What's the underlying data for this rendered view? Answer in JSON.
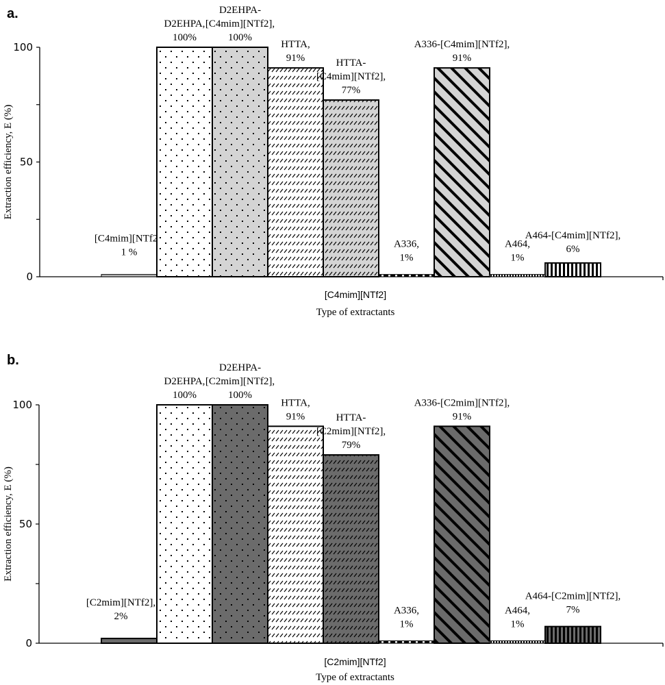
{
  "chart_data": [
    {
      "type": "bar",
      "panel_label": "a.",
      "title": "",
      "xlabel": "Type of extractants",
      "category_group_label": "[C4mim][NTf2]",
      "ylabel": "Extraction efficiency, E (%)",
      "ylim": [
        0,
        100
      ],
      "yticks": [
        0,
        25,
        50,
        75,
        100
      ],
      "ytick_labels": [
        "0",
        "",
        "50",
        "",
        "100"
      ],
      "grid": false,
      "categories": [
        "[C4mim][NTf2]",
        "D2EHPA",
        "D2EHPA-[C4mim][NTf2]",
        "HTTA",
        "HTTA-[C4mim][NTf2]",
        "A336",
        "A336-[C4mim][NTf2]",
        "A464",
        "A464-[C4mim][NTf2]"
      ],
      "values": [
        1,
        100,
        100,
        91,
        77,
        1,
        91,
        1,
        6
      ],
      "data_labels": [
        [
          "[C4mim][NTf2],",
          "1 %"
        ],
        [
          "D2EHPA,",
          "100%"
        ],
        [
          "D2EHPA-",
          "[C4mim][NTf2],",
          "100%"
        ],
        [
          "HTTA,",
          "91%"
        ],
        [
          "HTTA-",
          "[C4mim][NTf2],",
          "77%"
        ],
        [
          "A336,",
          "1%"
        ],
        [
          "A336-[C4mim][NTf2],",
          "91%"
        ],
        [
          "A464,",
          "1%"
        ],
        [
          "A464-[C4mim][NTf2],",
          "6%"
        ]
      ],
      "patterns": [
        "grey-plain",
        "sparse-dots-white",
        "dots-lightgrey",
        "diagonal-dashes-white",
        "diagonal-dashes-lightgrey",
        "dashed-line",
        "wide-diagonal-lightgrey",
        "dotted-line",
        "vertical-stripes-white"
      ]
    },
    {
      "type": "bar",
      "panel_label": "b.",
      "title": "",
      "xlabel": "Type of extractants",
      "category_group_label": "[C2mim][NTf2]",
      "ylabel": "Extraction efficiency, E (%)",
      "ylim": [
        0,
        100
      ],
      "yticks": [
        0,
        25,
        50,
        75,
        100
      ],
      "ytick_labels": [
        "0",
        "",
        "50",
        "",
        "100"
      ],
      "grid": false,
      "categories": [
        "[C2mim][NTf2]",
        "D2EHPA",
        "D2EHPA-[C2mim][NTf2]",
        "HTTA",
        "HTTA-[C2mim][NTf2]",
        "A336",
        "A336-[C2mim][NTf2]",
        "A464",
        "A464-[C2mim][NTf2]"
      ],
      "values": [
        2,
        100,
        100,
        91,
        79,
        1,
        91,
        1,
        7
      ],
      "data_labels": [
        [
          "[C2mim][NTf2],",
          "2%"
        ],
        [
          "D2EHPA,",
          "100%"
        ],
        [
          "D2EHPA-",
          "[C2mim][NTf2],",
          "100%"
        ],
        [
          "HTTA,",
          "91%"
        ],
        [
          "HTTA-",
          "[C2mim][NTf2],",
          "79%"
        ],
        [
          "A336,",
          "1%"
        ],
        [
          "A336-[C2mim][NTf2],",
          "91%"
        ],
        [
          "A464,",
          "1%"
        ],
        [
          "A464-[C2mim][NTf2],",
          "7%"
        ]
      ],
      "patterns": [
        "darkgrey-plain",
        "sparse-dots-white",
        "dots-darkgrey",
        "diagonal-dashes-white",
        "diagonal-dashes-darkgrey",
        "dashed-line",
        "wide-diagonal-darkgrey",
        "dotted-line",
        "vertical-stripes-darkgrey"
      ]
    }
  ],
  "colors": {
    "ink": "#000000",
    "light_fill": "#d4d4d4",
    "dark_fill": "#6b6b6b",
    "plain_grey": "#bdbdbd",
    "white": "#ffffff"
  }
}
